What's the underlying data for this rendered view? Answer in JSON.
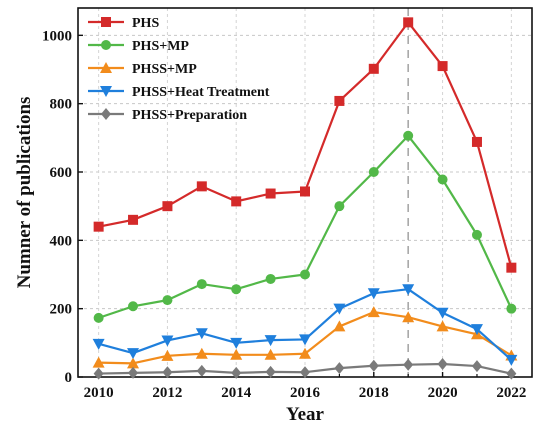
{
  "chart_data": {
    "type": "line",
    "title": "",
    "xlabel": "Year",
    "ylabel": "Numner of publications",
    "xlim": [
      2009.4,
      2022.6
    ],
    "ylim": [
      0,
      1080
    ],
    "x": [
      2010,
      2011,
      2012,
      2013,
      2014,
      2015,
      2016,
      2017,
      2018,
      2019,
      2020,
      2021,
      2022
    ],
    "xticks": [
      2010,
      2012,
      2014,
      2016,
      2018,
      2020,
      2022
    ],
    "yticks": [
      0,
      200,
      400,
      600,
      800,
      1000
    ],
    "grid": true,
    "legend_position": "top-left",
    "reference_line": {
      "x": 2019,
      "style": "dashed"
    },
    "series": [
      {
        "name": "PHS",
        "color": "#d42a2a",
        "marker": "square",
        "values": [
          440,
          460,
          500,
          558,
          514,
          537,
          543,
          808,
          902,
          1038,
          910,
          688,
          320
        ]
      },
      {
        "name": "PHS+MP",
        "color": "#52b848",
        "marker": "circle",
        "values": [
          173,
          207,
          225,
          272,
          257,
          287,
          300,
          500,
          600,
          706,
          578,
          416,
          200
        ]
      },
      {
        "name": "PHSS+MP",
        "color": "#f28c1c",
        "marker": "triangle-up",
        "values": [
          42,
          40,
          62,
          68,
          65,
          65,
          68,
          148,
          190,
          175,
          148,
          125,
          63
        ]
      },
      {
        "name": "PHSS+Heat Treatment",
        "color": "#1f7fdc",
        "marker": "triangle-down",
        "values": [
          97,
          70,
          107,
          128,
          100,
          108,
          110,
          200,
          245,
          257,
          188,
          140,
          50
        ]
      },
      {
        "name": "PHSS+Preparation",
        "color": "#7a7a7a",
        "marker": "diamond",
        "values": [
          10,
          12,
          14,
          18,
          12,
          15,
          14,
          26,
          33,
          36,
          38,
          32,
          10
        ]
      }
    ]
  }
}
